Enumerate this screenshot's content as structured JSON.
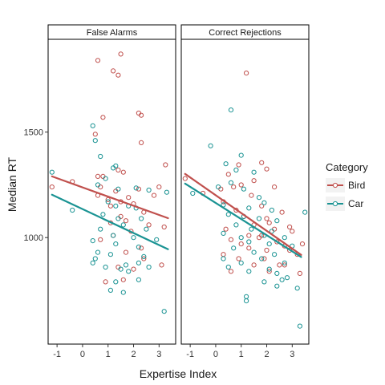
{
  "chart_data": {
    "type": "scatter",
    "xlabel": "Expertise Index",
    "ylabel": "Median RT",
    "xlim": [
      -1.35,
      3.65
    ],
    "ylim": [
      495,
      1940
    ],
    "x_ticks": [
      "-1",
      "0",
      "1",
      "2",
      "3"
    ],
    "x_tick_values": [
      -1,
      0,
      1,
      2,
      3
    ],
    "y_ticks": [
      "1000",
      "1500"
    ],
    "y_tick_values": [
      1000,
      1500
    ],
    "grid": false,
    "legend": {
      "title": "Category",
      "placement": "right",
      "entries": [
        {
          "name": "Bird",
          "color": "#c0504d"
        },
        {
          "name": "Car",
          "color": "#1a9393"
        }
      ]
    },
    "panels": [
      {
        "title": "False Alarms",
        "series": [
          {
            "name": "Bird",
            "color": "#c0504d",
            "trend": [
              [
                -1.2,
                1290
              ],
              [
                3.35,
                1092
              ]
            ],
            "points": [
              [
                1.5,
                1870
              ],
              [
                0.6,
                1840
              ],
              [
                1.2,
                1790
              ],
              [
                1.4,
                1770
              ],
              [
                0.8,
                1570
              ],
              [
                2.2,
                1590
              ],
              [
                2.3,
                1580
              ],
              [
                0.5,
                1490
              ],
              [
                2.3,
                1450
              ],
              [
                0.6,
                1290
              ],
              [
                1.4,
                1320
              ],
              [
                0.8,
                1290
              ],
              [
                1.6,
                1310
              ],
              [
                3.25,
                1345
              ],
              [
                0.7,
                1240
              ],
              [
                1.3,
                1220
              ],
              [
                0.6,
                1200
              ],
              [
                1.8,
                1190
              ],
              [
                1.0,
                1180
              ],
              [
                1.5,
                1170
              ],
              [
                1.1,
                1150
              ],
              [
                2.0,
                1160
              ],
              [
                1.5,
                1100
              ],
              [
                2.4,
                1120
              ],
              [
                2.2,
                1230
              ],
              [
                2.8,
                1200
              ],
              [
                3.0,
                1240
              ],
              [
                1.1,
                1070
              ],
              [
                1.7,
                1080
              ],
              [
                2.6,
                1060
              ],
              [
                1.2,
                1010
              ],
              [
                1.9,
                1030
              ],
              [
                2.3,
                950
              ],
              [
                0.7,
                990
              ],
              [
                1.7,
                930
              ],
              [
                2.4,
                900
              ],
              [
                1.4,
                860
              ],
              [
                0.9,
                790
              ],
              [
                1.6,
                800
              ],
              [
                -1.2,
                1240
              ],
              [
                -0.4,
                1265
              ],
              [
                3.2,
                1050
              ],
              [
                2.0,
                850
              ],
              [
                3.1,
                870
              ]
            ]
          },
          {
            "name": "Car",
            "color": "#1a9393",
            "trend": [
              [
                -1.2,
                1203
              ],
              [
                3.35,
                945
              ]
            ],
            "points": [
              [
                -1.2,
                1310
              ],
              [
                0.4,
                1530
              ],
              [
                0.5,
                1460
              ],
              [
                0.7,
                1385
              ],
              [
                1.3,
                1340
              ],
              [
                1.2,
                1330
              ],
              [
                0.9,
                1280
              ],
              [
                0.6,
                1250
              ],
              [
                1.4,
                1230
              ],
              [
                2.1,
                1235
              ],
              [
                2.6,
                1225
              ],
              [
                1.0,
                1170
              ],
              [
                1.3,
                1150
              ],
              [
                1.8,
                1150
              ],
              [
                2.1,
                1140
              ],
              [
                3.3,
                1215
              ],
              [
                0.8,
                1110
              ],
              [
                1.4,
                1090
              ],
              [
                2.3,
                1090
              ],
              [
                1.6,
                1060
              ],
              [
                0.7,
                1040
              ],
              [
                2.5,
                1040
              ],
              [
                1.2,
                1010
              ],
              [
                2.0,
                1000
              ],
              [
                0.4,
                985
              ],
              [
                1.3,
                970
              ],
              [
                2.2,
                955
              ],
              [
                2.9,
                990
              ],
              [
                0.6,
                930
              ],
              [
                1.1,
                920
              ],
              [
                2.4,
                910
              ],
              [
                0.5,
                900
              ],
              [
                1.7,
                870
              ],
              [
                2.2,
                880
              ],
              [
                0.9,
                860
              ],
              [
                2.6,
                860
              ],
              [
                1.5,
                850
              ],
              [
                1.8,
                840
              ],
              [
                1.3,
                790
              ],
              [
                1.6,
                740
              ],
              [
                1.1,
                750
              ],
              [
                3.2,
                650
              ],
              [
                2.2,
                800
              ],
              [
                0.4,
                880
              ],
              [
                -0.4,
                1130
              ]
            ]
          }
        ]
      },
      {
        "title": "Correct Rejections",
        "series": [
          {
            "name": "Bird",
            "color": "#c0504d",
            "trend": [
              [
                -1.2,
                1302
              ],
              [
                3.35,
                918
              ]
            ],
            "points": [
              [
                1.2,
                1780
              ],
              [
                1.8,
                1355
              ],
              [
                0.9,
                1345
              ],
              [
                2.0,
                1325
              ],
              [
                0.5,
                1300
              ],
              [
                1.5,
                1270
              ],
              [
                1.0,
                1250
              ],
              [
                0.7,
                1240
              ],
              [
                0.2,
                1230
              ],
              [
                1.4,
                1200
              ],
              [
                0.3,
                1170
              ],
              [
                -1.2,
                1280
              ],
              [
                -0.5,
                1210
              ],
              [
                2.3,
                1240
              ],
              [
                2.6,
                1120
              ],
              [
                0.8,
                1130
              ],
              [
                1.8,
                1150
              ],
              [
                1.1,
                1100
              ],
              [
                2.0,
                1090
              ],
              [
                1.5,
                1060
              ],
              [
                2.3,
                1040
              ],
              [
                0.4,
                1040
              ],
              [
                1.3,
                1010
              ],
              [
                1.8,
                1010
              ],
              [
                2.1,
                1070
              ],
              [
                2.9,
                1050
              ],
              [
                3.0,
                1030
              ],
              [
                0.6,
                990
              ],
              [
                1.7,
                1000
              ],
              [
                1.0,
                970
              ],
              [
                2.4,
                980
              ],
              [
                2.7,
                960
              ],
              [
                1.3,
                950
              ],
              [
                2.0,
                940
              ],
              [
                0.3,
                920
              ],
              [
                0.9,
                900
              ],
              [
                2.7,
                870
              ],
              [
                1.5,
                870
              ],
              [
                0.6,
                840
              ],
              [
                2.1,
                840
              ],
              [
                3.3,
                830
              ],
              [
                3.4,
                970
              ],
              [
                2.9,
                940
              ],
              [
                1.9,
                900
              ],
              [
                2.5,
                870
              ],
              [
                3.2,
                920
              ]
            ]
          },
          {
            "name": "Car",
            "color": "#1a9393",
            "trend": [
              [
                -1.2,
                1256
              ],
              [
                3.35,
                908
              ]
            ],
            "points": [
              [
                0.6,
                1605
              ],
              [
                -0.2,
                1435
              ],
              [
                1.0,
                1390
              ],
              [
                0.4,
                1350
              ],
              [
                0.8,
                1320
              ],
              [
                1.5,
                1310
              ],
              [
                0.6,
                1260
              ],
              [
                0.1,
                1240
              ],
              [
                1.1,
                1230
              ],
              [
                1.7,
                1190
              ],
              [
                1.9,
                1165
              ],
              [
                0.3,
                1155
              ],
              [
                1.3,
                1140
              ],
              [
                2.2,
                1130
              ],
              [
                3.5,
                1120
              ],
              [
                0.5,
                1110
              ],
              [
                1.1,
                1100
              ],
              [
                1.7,
                1090
              ],
              [
                2.4,
                1080
              ],
              [
                0.8,
                1060
              ],
              [
                1.4,
                1040
              ],
              [
                2.2,
                1030
              ],
              [
                0.3,
                1020
              ],
              [
                1.0,
                1000
              ],
              [
                1.9,
                1010
              ],
              [
                2.7,
                1000
              ],
              [
                1.3,
                980
              ],
              [
                2.1,
                970
              ],
              [
                3.0,
                960
              ],
              [
                0.7,
                950
              ],
              [
                1.5,
                930
              ],
              [
                2.3,
                920
              ],
              [
                0.3,
                900
              ],
              [
                1.0,
                880
              ],
              [
                1.8,
                900
              ],
              [
                2.7,
                880
              ],
              [
                0.5,
                860
              ],
              [
                1.3,
                840
              ],
              [
                2.1,
                850
              ],
              [
                2.4,
                830
              ],
              [
                2.8,
                810
              ],
              [
                1.9,
                790
              ],
              [
                2.4,
                770
              ],
              [
                1.2,
                720
              ],
              [
                1.2,
                700
              ],
              [
                3.3,
                580
              ],
              [
                -0.9,
                1210
              ],
              [
                2.6,
                800
              ],
              [
                3.2,
                760
              ]
            ]
          }
        ]
      }
    ]
  }
}
